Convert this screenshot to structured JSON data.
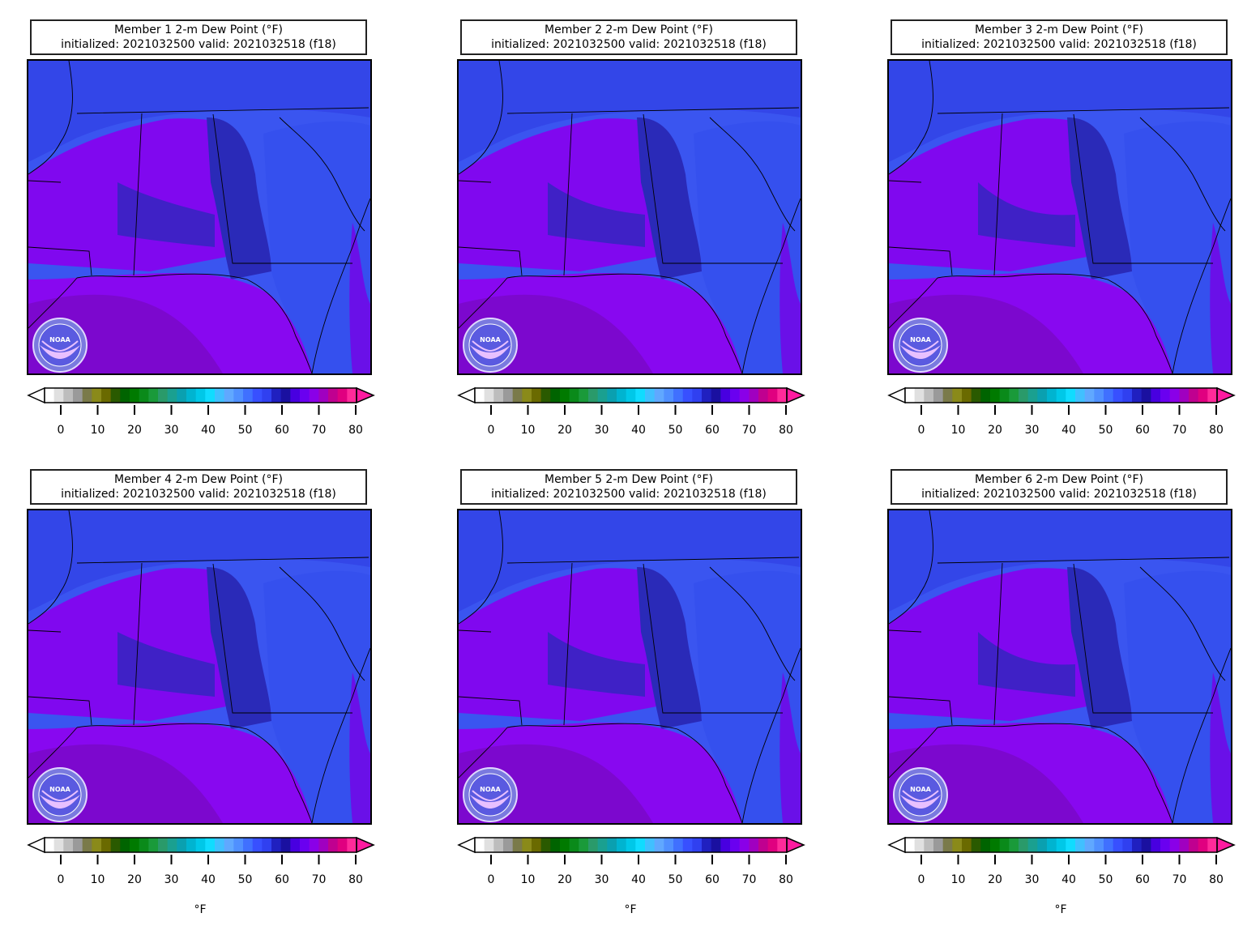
{
  "panels": [
    {
      "title": "Member 1 2-m Dew Point (°F)",
      "subtitle": "initialized: 2021032500 valid: 2021032518 (f18)"
    },
    {
      "title": "Member 2 2-m Dew Point (°F)",
      "subtitle": "initialized: 2021032500 valid: 2021032518 (f18)"
    },
    {
      "title": "Member 3 2-m Dew Point (°F)",
      "subtitle": "initialized: 2021032500 valid: 2021032518 (f18)"
    },
    {
      "title": "Member 4 2-m Dew Point (°F)",
      "subtitle": "initialized: 2021032500 valid: 2021032518 (f18)"
    },
    {
      "title": "Member 5 2-m Dew Point (°F)",
      "subtitle": "initialized: 2021032500 valid: 2021032518 (f18)"
    },
    {
      "title": "Member 6 2-m Dew Point (°F)",
      "subtitle": "initialized: 2021032500 valid: 2021032518 (f18)"
    }
  ],
  "colorbar": {
    "ticks": [
      "0",
      "10",
      "20",
      "30",
      "40",
      "50",
      "60",
      "70",
      "80"
    ],
    "unit": "°F",
    "colors": [
      "#ffffff",
      "#e0e0e0",
      "#bdbdbd",
      "#9a9a9a",
      "#7a7a4a",
      "#8a8a1a",
      "#6a6a00",
      "#2a5a00",
      "#006400",
      "#007a00",
      "#0a8a1a",
      "#1a9a3a",
      "#2a9a6a",
      "#1aa090",
      "#0aa0b0",
      "#00b4d0",
      "#00c8e8",
      "#10dcff",
      "#40c0ff",
      "#60a8ff",
      "#5090ff",
      "#4070ff",
      "#3850ff",
      "#3040f0",
      "#2020c0",
      "#1a10a0",
      "#4800e0",
      "#6a00f0",
      "#8a00e8",
      "#a000c0",
      "#c00090",
      "#e00080",
      "#ff2a9a"
    ],
    "low_color": "#ffffff",
    "high_color": "#ff1aa0"
  },
  "map_style": {
    "base": "#3a55f0",
    "north": "#3346e8",
    "gulf_west": "#7a08c8",
    "gulf": "#8808f0",
    "land_moist": "#8800ee",
    "dry_band": "#2a2ab8",
    "east": "#3550ee",
    "atlantic": "#6a10e8"
  },
  "logo": {
    "text": "NOAA"
  }
}
